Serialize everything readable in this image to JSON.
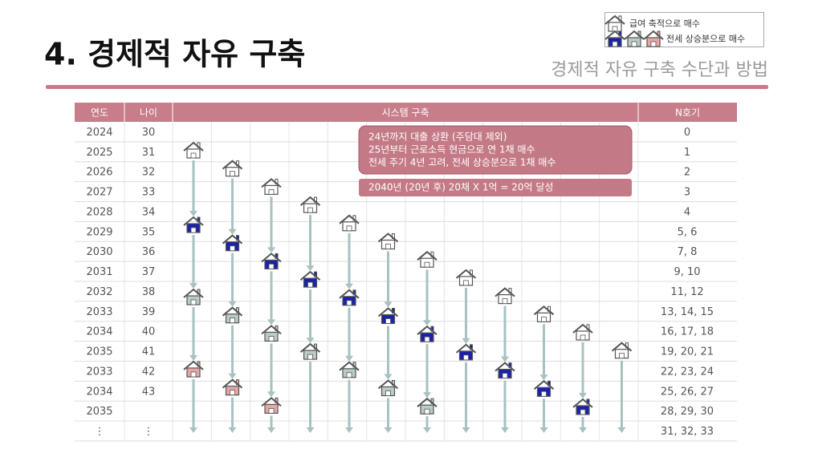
{
  "header": {
    "title": "4. 경제적 자유 구축",
    "subtitle": "경제적 자유 구축 수단과 방법"
  },
  "legend": {
    "items": [
      "급여 축적으로 매수",
      "전세 상승분으로 매수"
    ]
  },
  "table": {
    "columns": [
      "연도",
      "나이",
      "시스템 구축",
      "N호기"
    ],
    "rows": [
      [
        "2024",
        "30",
        "0"
      ],
      [
        "2025",
        "31",
        "1"
      ],
      [
        "2026",
        "32",
        "2"
      ],
      [
        "2027",
        "33",
        "3"
      ],
      [
        "2028",
        "34",
        "4"
      ],
      [
        "2029",
        "35",
        "5, 6"
      ],
      [
        "2030",
        "36",
        "7, 8"
      ],
      [
        "2031",
        "37",
        "9, 10"
      ],
      [
        "2032",
        "38",
        "11, 12"
      ],
      [
        "2033",
        "39",
        "13, 14, 15"
      ],
      [
        "2034",
        "40",
        "16, 17, 18"
      ],
      [
        "2035",
        "41",
        "19, 20, 21"
      ],
      [
        "2033",
        "42",
        "22, 23, 24"
      ],
      [
        "2034",
        "43",
        "25, 26, 27"
      ],
      [
        "2035",
        null,
        "28, 29, 30"
      ],
      [
        "⋮",
        "⋮",
        "31, 32, 33"
      ]
    ]
  },
  "notes": [
    "24년까지 대출 상환 (주담대 제외)",
    "25년부터 근로소득 현금으로 연 1채 매수",
    "전세 주기 4년 고려, 전세 상승분으로 1채 매수"
  ],
  "goal": "2040년 (20년 후) 20채 X 1억 = 20억 달성"
}
